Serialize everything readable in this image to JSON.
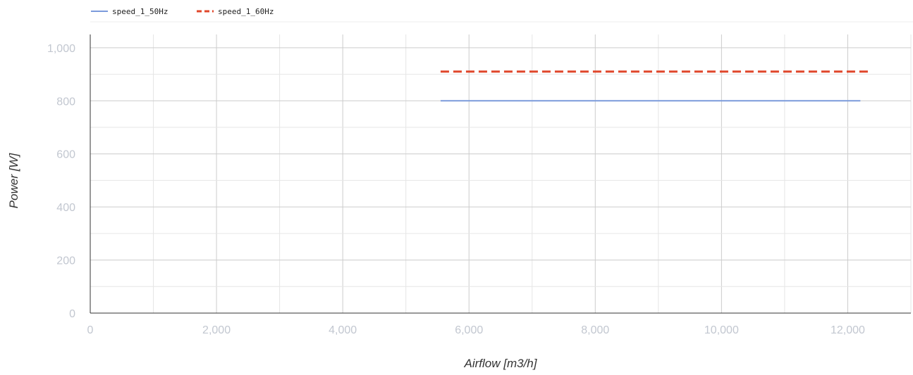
{
  "chart_data": {
    "type": "line",
    "xlabel": "Airflow [m3/h]",
    "ylabel": "Power [W]",
    "xlim": [
      0,
      13000
    ],
    "ylim": [
      0,
      1050
    ],
    "x_ticks": [
      0,
      2000,
      4000,
      6000,
      8000,
      10000,
      12000
    ],
    "x_tick_labels": [
      "0",
      "2,000",
      "4,000",
      "6,000",
      "8,000",
      "10,000",
      "12,000"
    ],
    "y_ticks": [
      0,
      200,
      400,
      600,
      800,
      1000
    ],
    "y_tick_labels": [
      "0",
      "200",
      "400",
      "600",
      "800",
      "1,000"
    ],
    "grid": true,
    "legend_position": "top-left",
    "series": [
      {
        "name": "speed_1_50Hz",
        "color": "#7b9bdb",
        "style": "solid",
        "x": [
          5550,
          12200
        ],
        "y": [
          800,
          800
        ]
      },
      {
        "name": "speed_1_60Hz",
        "color": "#e0472b",
        "style": "dashed",
        "x": [
          5550,
          12350
        ],
        "y": [
          910,
          910
        ]
      }
    ]
  }
}
